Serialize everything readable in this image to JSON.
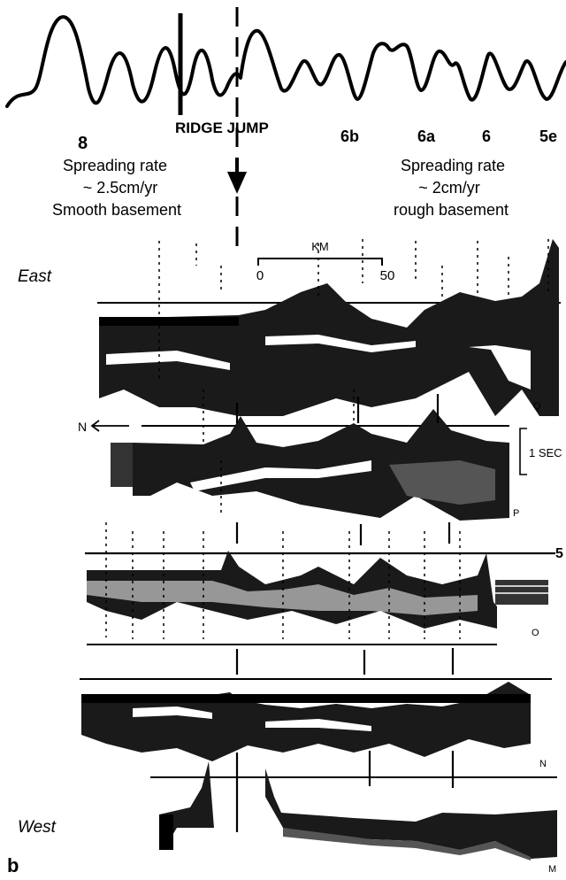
{
  "anomaly_labels": [
    "8",
    "RIDGE JUMP",
    "6b",
    "6a",
    "6",
    "5e"
  ],
  "left_annotation": {
    "line1": "Spreading rate",
    "line2": "~ 2.5cm/yr",
    "line3": "Smooth basement"
  },
  "right_annotation": {
    "line1": "Spreading rate",
    "line2": "~ 2cm/yr",
    "line3": "rough basement"
  },
  "scale_bar": {
    "unit": "KM",
    "start": "0",
    "end": "50"
  },
  "direction_label": "N",
  "time_scale": "1 SEC",
  "profile_side_labels": {
    "top": "East",
    "bottom": "West"
  },
  "profile_letters": [
    "Q",
    "P",
    "O",
    "N",
    "M"
  ],
  "number_mark": "5",
  "panel_letter": "b"
}
